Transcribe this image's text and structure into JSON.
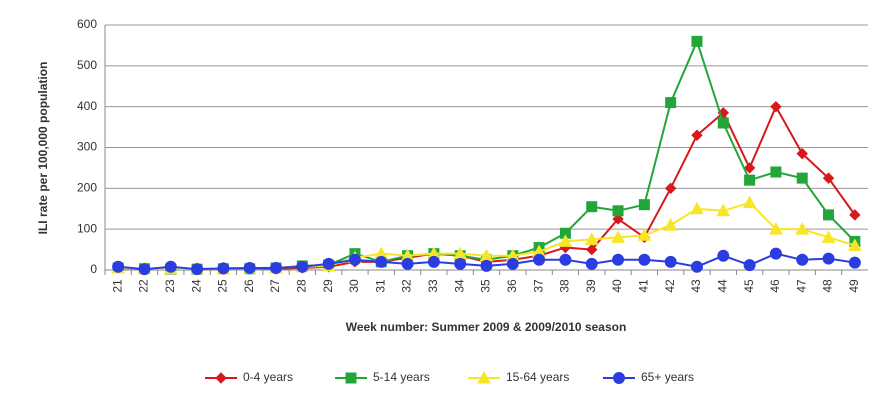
{
  "chart_data": {
    "type": "line",
    "x_label": "Week number: Summer 2009 & 2009/2010 season",
    "y_label": "ILI rate per 100,000 population",
    "categories": [
      "21",
      "22",
      "23",
      "24",
      "25",
      "26",
      "27",
      "28",
      "29",
      "30",
      "31",
      "32",
      "33",
      "34",
      "35",
      "36",
      "37",
      "38",
      "39",
      "40",
      "41",
      "42",
      "43",
      "44",
      "45",
      "46",
      "47",
      "48",
      "49"
    ],
    "series": [
      {
        "name": "0-4 years",
        "color": "#d7191c",
        "marker": "diamond",
        "values": [
          5,
          2,
          3,
          2,
          2,
          3,
          3,
          5,
          8,
          20,
          20,
          30,
          40,
          35,
          20,
          25,
          35,
          55,
          50,
          125,
          80,
          200,
          330,
          385,
          250,
          400,
          285,
          225,
          135
        ]
      },
      {
        "name": "5-14 years",
        "color": "#22a63a",
        "marker": "square",
        "values": [
          5,
          3,
          2,
          2,
          3,
          3,
          5,
          10,
          12,
          40,
          20,
          35,
          40,
          35,
          25,
          35,
          55,
          90,
          155,
          145,
          160,
          410,
          560,
          360,
          220,
          240,
          225,
          135,
          70
        ]
      },
      {
        "name": "15-64 years",
        "color": "#f7e628",
        "marker": "triangle",
        "values": [
          5,
          3,
          3,
          3,
          3,
          4,
          5,
          8,
          10,
          30,
          40,
          35,
          40,
          40,
          35,
          35,
          45,
          70,
          75,
          80,
          85,
          110,
          150,
          145,
          165,
          100,
          100,
          80,
          60
        ]
      },
      {
        "name": "65+ years",
        "color": "#2b3de0",
        "marker": "circle",
        "values": [
          8,
          2,
          8,
          2,
          4,
          5,
          5,
          8,
          15,
          25,
          20,
          15,
          20,
          15,
          10,
          15,
          25,
          25,
          15,
          25,
          25,
          20,
          8,
          35,
          12,
          40,
          25,
          28,
          18
        ]
      }
    ],
    "ylim": [
      0,
      600
    ],
    "yticks": [
      0,
      100,
      200,
      300,
      400,
      500,
      600
    ],
    "grid": true,
    "legend": "bottom"
  }
}
